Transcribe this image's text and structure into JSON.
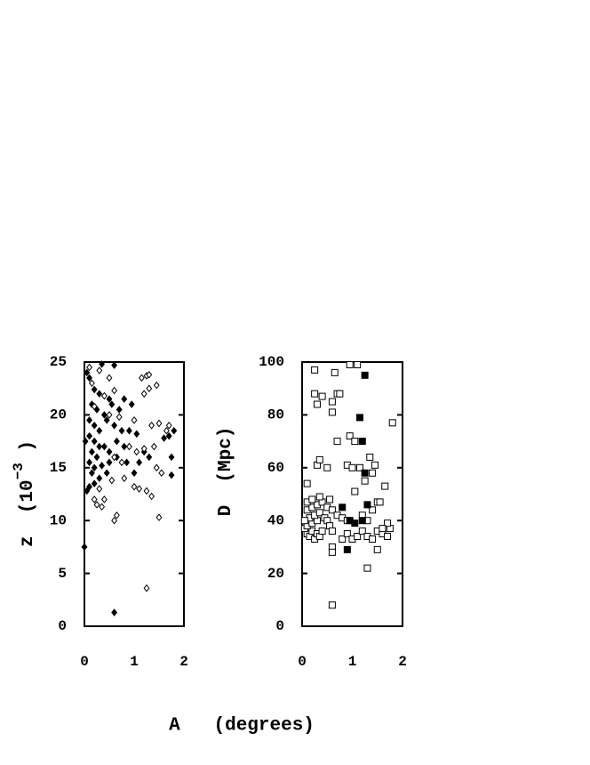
{
  "xlabel": "A   (degrees)",
  "chart_data": [
    {
      "type": "scatter",
      "ylabel": "z  (10",
      "ylabel_superscript": "−3",
      "ylabel_suffix": " )",
      "xlim": [
        0,
        2
      ],
      "xticks": [
        0,
        1,
        2
      ],
      "ylim": [
        0,
        25
      ],
      "yticks": [
        0,
        5,
        10,
        15,
        20,
        25
      ],
      "series": [
        {
          "marker": "diamond",
          "filled": true,
          "color": "#000000",
          "x": [
            0.05,
            0.1,
            0.2,
            0.35,
            0.6,
            0.3,
            0.5,
            0.15,
            0.25,
            0.4,
            0.55,
            0.7,
            0.8,
            0.95,
            0.1,
            0.2,
            0.3,
            0.45,
            0.6,
            0.75,
            0.9,
            1.05,
            0.1,
            0.2,
            0.3,
            0.15,
            0.25,
            0.4,
            0.5,
            0.65,
            0.8,
            0.1,
            0.2,
            0.35,
            0.5,
            0.65,
            0.85,
            0.15,
            0.3,
            0.45,
            0.1,
            0.2,
            0.05,
            1.0,
            1.1,
            1.3,
            1.6,
            1.7,
            1.8,
            1.75,
            1.75,
            0.6,
            0.0,
            1.2,
            0.02
          ],
          "values": [
            24,
            23.5,
            22.4,
            24.8,
            24.7,
            22,
            21.5,
            21,
            20.5,
            20,
            21,
            20.5,
            21.5,
            21,
            19.5,
            19,
            18.5,
            19.5,
            19,
            18.5,
            18.5,
            18.2,
            18,
            17.5,
            17,
            16.5,
            16,
            17,
            16.5,
            17.5,
            17,
            15.5,
            15,
            15.2,
            15.5,
            16,
            15.5,
            14.5,
            14,
            14.5,
            13.2,
            13.5,
            12.8,
            14.5,
            15.5,
            16,
            17.8,
            18,
            18.5,
            16,
            14.3,
            1.3,
            7.5,
            16.5,
            17.5
          ]
        },
        {
          "marker": "diamond",
          "filled": false,
          "color": "#000000",
          "x": [
            0.1,
            0.3,
            0.15,
            0.5,
            1.15,
            1.25,
            1.3,
            1.45,
            1.2,
            1.3,
            0.4,
            0.6,
            0.2,
            0.5,
            0.7,
            1.0,
            1.35,
            1.5,
            1.7,
            1.65,
            0.9,
            1.05,
            1.2,
            1.4,
            0.6,
            0.75,
            1.45,
            1.55,
            0.3,
            0.4,
            0.25,
            0.55,
            1.0,
            1.1,
            1.25,
            1.35,
            0.6,
            0.65,
            1.5,
            0.2,
            1.25,
            0.8,
            0.35
          ],
          "values": [
            24.5,
            24.2,
            23,
            23.5,
            23.5,
            23.7,
            23.8,
            22.8,
            22,
            22.5,
            21.8,
            22.3,
            20.8,
            20,
            19.8,
            19.5,
            19,
            19.2,
            19,
            18.5,
            17,
            16.5,
            16.8,
            17,
            16,
            15.5,
            15,
            14.5,
            13,
            12,
            11.5,
            13.8,
            13.2,
            13,
            12.8,
            12.3,
            10,
            10.5,
            10.3,
            12,
            3.6,
            14,
            11.3
          ]
        }
      ]
    },
    {
      "type": "scatter",
      "ylabel": "D  (Mpc)",
      "xlim": [
        0,
        2
      ],
      "xticks": [
        0,
        1,
        2
      ],
      "ylim": [
        0,
        100
      ],
      "yticks": [
        0,
        20,
        40,
        60,
        80,
        100
      ],
      "series": [
        {
          "marker": "square",
          "filled": false,
          "color": "#000000",
          "x": [
            0.1,
            0.15,
            0.2,
            0.25,
            0.3,
            0.35,
            0.4,
            0.05,
            0.1,
            0.2,
            0.3,
            0.15,
            0.25,
            0.35,
            0.45,
            0.5,
            0.55,
            0.6,
            0.05,
            0.1,
            0.2,
            0.3,
            0.4,
            0.5,
            0.6,
            0.7,
            0.8,
            0.9,
            0.1,
            0.2,
            0.35,
            0.55,
            0.6,
            0.6,
            0.8,
            0.9,
            1.0,
            1.1,
            1.2,
            1.3,
            1.4,
            1.5,
            1.6,
            1.7,
            1.75,
            1.7,
            1.6,
            1.3,
            1.2,
            1.4,
            1.5,
            1.65,
            1.55,
            1.05,
            1.25,
            1.4,
            1.45,
            1.35,
            0.9,
            1.0,
            1.15,
            1.8,
            0.5,
            0.3,
            0.35,
            0.1,
            0.7,
            0.95,
            1.05,
            0.3,
            0.25,
            0.4,
            0.6,
            0.6,
            0.7,
            0.75,
            0.65,
            0.25,
            0.95,
            1.1,
            1.3,
            0.6,
            1.5
          ],
          "values": [
            35,
            34,
            36,
            33,
            35,
            34,
            36,
            37,
            38,
            39,
            40,
            41,
            42,
            43,
            41,
            40,
            38,
            36,
            40,
            44,
            45,
            46,
            47,
            45,
            44,
            42,
            41,
            40,
            47,
            48,
            49,
            48,
            30,
            28,
            33,
            35,
            33,
            34,
            36,
            34,
            33,
            36,
            35,
            34,
            37,
            39,
            37,
            40,
            42,
            44,
            47,
            53,
            47,
            51,
            55,
            58,
            61,
            64,
            61,
            60,
            60,
            77,
            60,
            61,
            63,
            54,
            70,
            72,
            70,
            84,
            88,
            87,
            85,
            81,
            88,
            88,
            96,
            97,
            99,
            99,
            22,
            8,
            29
          ]
        },
        {
          "marker": "square",
          "filled": true,
          "color": "#000000",
          "x": [
            1.25,
            1.15,
            1.2,
            1.25,
            1.3,
            0.95,
            0.9,
            1.05,
            0.8,
            1.2
          ],
          "values": [
            95,
            79,
            70,
            58,
            46,
            40,
            29,
            39,
            45,
            40
          ]
        }
      ]
    }
  ]
}
